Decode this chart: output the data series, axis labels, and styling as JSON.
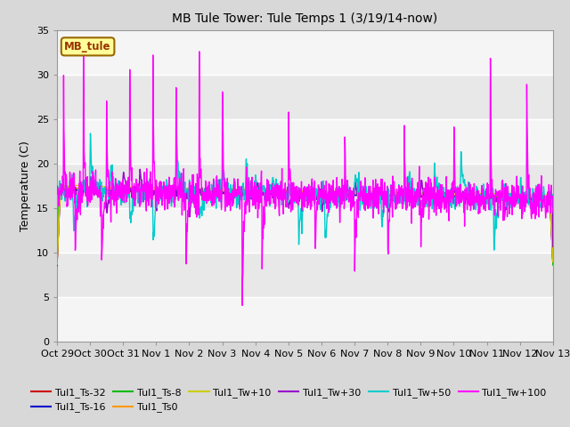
{
  "title": "MB Tule Tower: Tule Temps 1 (3/19/14-now)",
  "ylabel": "Temperature (C)",
  "ylim": [
    0,
    35
  ],
  "yticks": [
    0,
    5,
    10,
    15,
    20,
    25,
    30,
    35
  ],
  "date_labels": [
    "Oct 29",
    "Oct 30",
    "Oct 31",
    "Nov 1",
    "Nov 2",
    "Nov 3",
    "Nov 4",
    "Nov 5",
    "Nov 6",
    "Nov 7",
    "Nov 8",
    "Nov 9",
    "Nov 10",
    "Nov 11",
    "Nov 12",
    "Nov 13"
  ],
  "bg_color": "#d8d8d8",
  "plot_bg": "#e8e8e8",
  "series": {
    "Tul1_Ts-32": {
      "color": "#cc0000",
      "lw": 1.0
    },
    "Tul1_Ts-16": {
      "color": "#0000cc",
      "lw": 1.0
    },
    "Tul1_Ts-8": {
      "color": "#00bb00",
      "lw": 1.0
    },
    "Tul1_Ts0": {
      "color": "#ff9900",
      "lw": 1.0
    },
    "Tul1_Tw+10": {
      "color": "#cccc00",
      "lw": 1.0
    },
    "Tul1_Tw+30": {
      "color": "#9900cc",
      "lw": 1.0
    },
    "Tul1_Tw+50": {
      "color": "#00cccc",
      "lw": 1.0
    },
    "Tul1_Tw+100": {
      "color": "#ff00ff",
      "lw": 1.0
    }
  },
  "legend_box": {
    "text": "MB_tule",
    "facecolor": "#ffff99",
    "edgecolor": "#996600",
    "textcolor": "#993300"
  }
}
